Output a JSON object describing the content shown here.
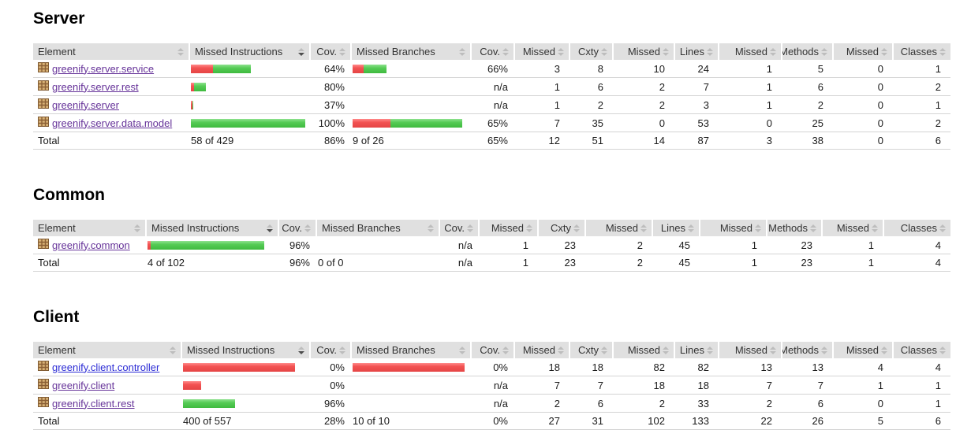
{
  "report": {
    "colors": {
      "header_bg": "#e0e0e0",
      "bar_red": "#f25252",
      "bar_green": "#55cb55",
      "link_visited": "#663399",
      "link_unvisited": "#2b2bd5",
      "row_line": "#d4d4d4"
    },
    "columns": [
      "Element",
      "Missed Instructions",
      "Cov.",
      "Missed Branches",
      "Cov.",
      "Missed",
      "Cxty",
      "Missed",
      "Lines",
      "Missed",
      "Methods",
      "Missed",
      "Classes"
    ],
    "sort": {
      "sorted_column": "Missed Instructions",
      "direction": "desc"
    },
    "sections": [
      {
        "id": "server",
        "title": "Server",
        "rows": [
          {
            "name": "greenify.server.service",
            "link_state": "visited",
            "instr_bar": {
              "red_w": 28,
              "green_w": 48
            },
            "instr_cov": "64%",
            "branch_bar": {
              "red_w": 14,
              "green_w": 29
            },
            "branch_cov": "66%",
            "counters": [
              "3",
              "8",
              "10",
              "24",
              "1",
              "5",
              "0",
              "1"
            ]
          },
          {
            "name": "greenify.server.rest",
            "link_state": "visited",
            "instr_bar": {
              "red_w": 4,
              "green_w": 15
            },
            "instr_cov": "80%",
            "branch_bar": null,
            "branch_cov": "n/a",
            "counters": [
              "1",
              "6",
              "2",
              "7",
              "1",
              "6",
              "0",
              "2"
            ]
          },
          {
            "name": "greenify.server",
            "link_state": "visited",
            "instr_bar": {
              "red_w": 2,
              "green_w": 1
            },
            "instr_cov": "37%",
            "branch_bar": null,
            "branch_cov": "n/a",
            "counters": [
              "1",
              "2",
              "2",
              "3",
              "1",
              "2",
              "0",
              "1"
            ]
          },
          {
            "name": "greenify.server.data.model",
            "link_state": "visited",
            "instr_bar": {
              "red_w": 0,
              "green_w": 145
            },
            "instr_cov": "100%",
            "branch_bar": {
              "red_w": 48,
              "green_w": 91
            },
            "branch_cov": "65%",
            "counters": [
              "7",
              "35",
              "0",
              "53",
              "0",
              "25",
              "0",
              "2"
            ]
          }
        ],
        "total": {
          "label": "Total",
          "instr": "58 of 429",
          "instr_cov": "86%",
          "branch": "9 of 26",
          "branch_cov": "65%",
          "counters": [
            "12",
            "51",
            "14",
            "87",
            "3",
            "38",
            "0",
            "6"
          ]
        }
      },
      {
        "id": "common",
        "title": "Common",
        "rows": [
          {
            "name": "greenify.common",
            "link_state": "visited",
            "instr_bar": {
              "red_w": 4,
              "green_w": 144
            },
            "instr_cov": "96%",
            "branch_bar": null,
            "branch_cov": "n/a",
            "counters": [
              "1",
              "23",
              "2",
              "45",
              "1",
              "23",
              "1",
              "4"
            ]
          }
        ],
        "total": {
          "label": "Total",
          "instr": "4 of 102",
          "instr_cov": "96%",
          "branch": "0 of 0",
          "branch_cov": "n/a",
          "counters": [
            "1",
            "23",
            "2",
            "45",
            "1",
            "23",
            "1",
            "4"
          ]
        }
      },
      {
        "id": "client",
        "title": "Client",
        "rows": [
          {
            "name": "greenify.client.controller",
            "link_state": "unvisited",
            "instr_bar": {
              "red_w": 142,
              "green_w": 0
            },
            "instr_cov": "0%",
            "branch_bar": {
              "red_w": 142,
              "green_w": 0
            },
            "branch_cov": "0%",
            "counters": [
              "18",
              "18",
              "82",
              "82",
              "13",
              "13",
              "4",
              "4"
            ]
          },
          {
            "name": "greenify.client",
            "link_state": "visited",
            "instr_bar": {
              "red_w": 23,
              "green_w": 0
            },
            "instr_cov": "0%",
            "branch_bar": null,
            "branch_cov": "n/a",
            "counters": [
              "7",
              "7",
              "18",
              "18",
              "7",
              "7",
              "1",
              "1"
            ]
          },
          {
            "name": "greenify.client.rest",
            "link_state": "visited",
            "instr_bar": {
              "red_w": 0,
              "green_w": 66
            },
            "instr_cov": "96%",
            "branch_bar": null,
            "branch_cov": "n/a",
            "counters": [
              "2",
              "6",
              "2",
              "33",
              "2",
              "6",
              "0",
              "1"
            ]
          }
        ],
        "total": {
          "label": "Total",
          "instr": "400 of 557",
          "instr_cov": "28%",
          "branch": "10 of 10",
          "branch_cov": "0%",
          "counters": [
            "27",
            "31",
            "102",
            "133",
            "22",
            "26",
            "5",
            "6"
          ]
        }
      }
    ]
  }
}
